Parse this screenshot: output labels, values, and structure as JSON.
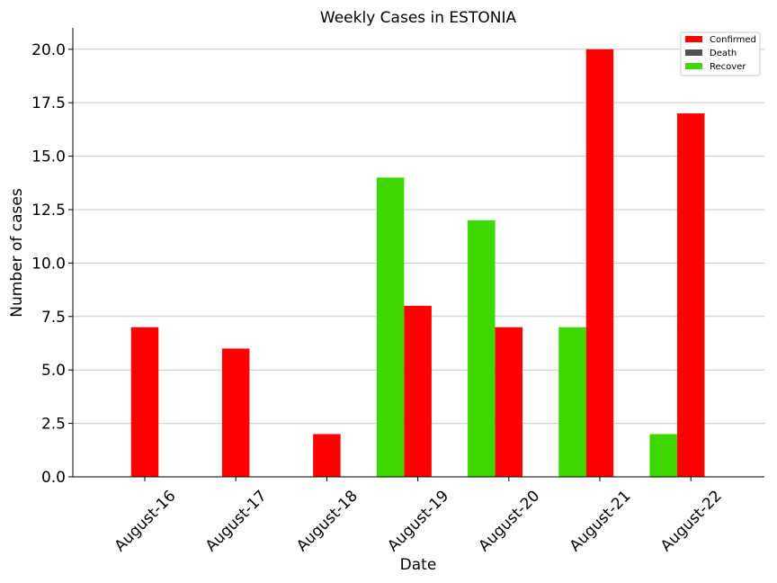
{
  "chart_data": {
    "type": "bar",
    "title": "Weekly Cases in ESTONIA",
    "xlabel": "Date",
    "ylabel": "Number of cases",
    "categories": [
      "August-16",
      "August-17",
      "August-18",
      "August-19",
      "August-20",
      "August-21",
      "August-22"
    ],
    "ylim": [
      0,
      21
    ],
    "yticks": [
      "0.0",
      "2.5",
      "5.0",
      "7.5",
      "10.0",
      "12.5",
      "15.0",
      "17.5",
      "20.0"
    ],
    "grid": "horizontal",
    "legend_position": "top-right",
    "series": [
      {
        "name": "Recover",
        "color": "#3ed800",
        "values": [
          0,
          0,
          0,
          14,
          12,
          7,
          2
        ]
      },
      {
        "name": "Confirmed",
        "color": "#ff0000",
        "values": [
          7,
          6,
          2,
          8,
          7,
          20,
          17
        ]
      },
      {
        "name": "Death",
        "color": "#505050",
        "values": [
          0,
          0,
          0,
          0,
          0,
          0,
          0
        ]
      }
    ],
    "legend": [
      "Confirmed",
      "Death",
      "Recover"
    ]
  }
}
